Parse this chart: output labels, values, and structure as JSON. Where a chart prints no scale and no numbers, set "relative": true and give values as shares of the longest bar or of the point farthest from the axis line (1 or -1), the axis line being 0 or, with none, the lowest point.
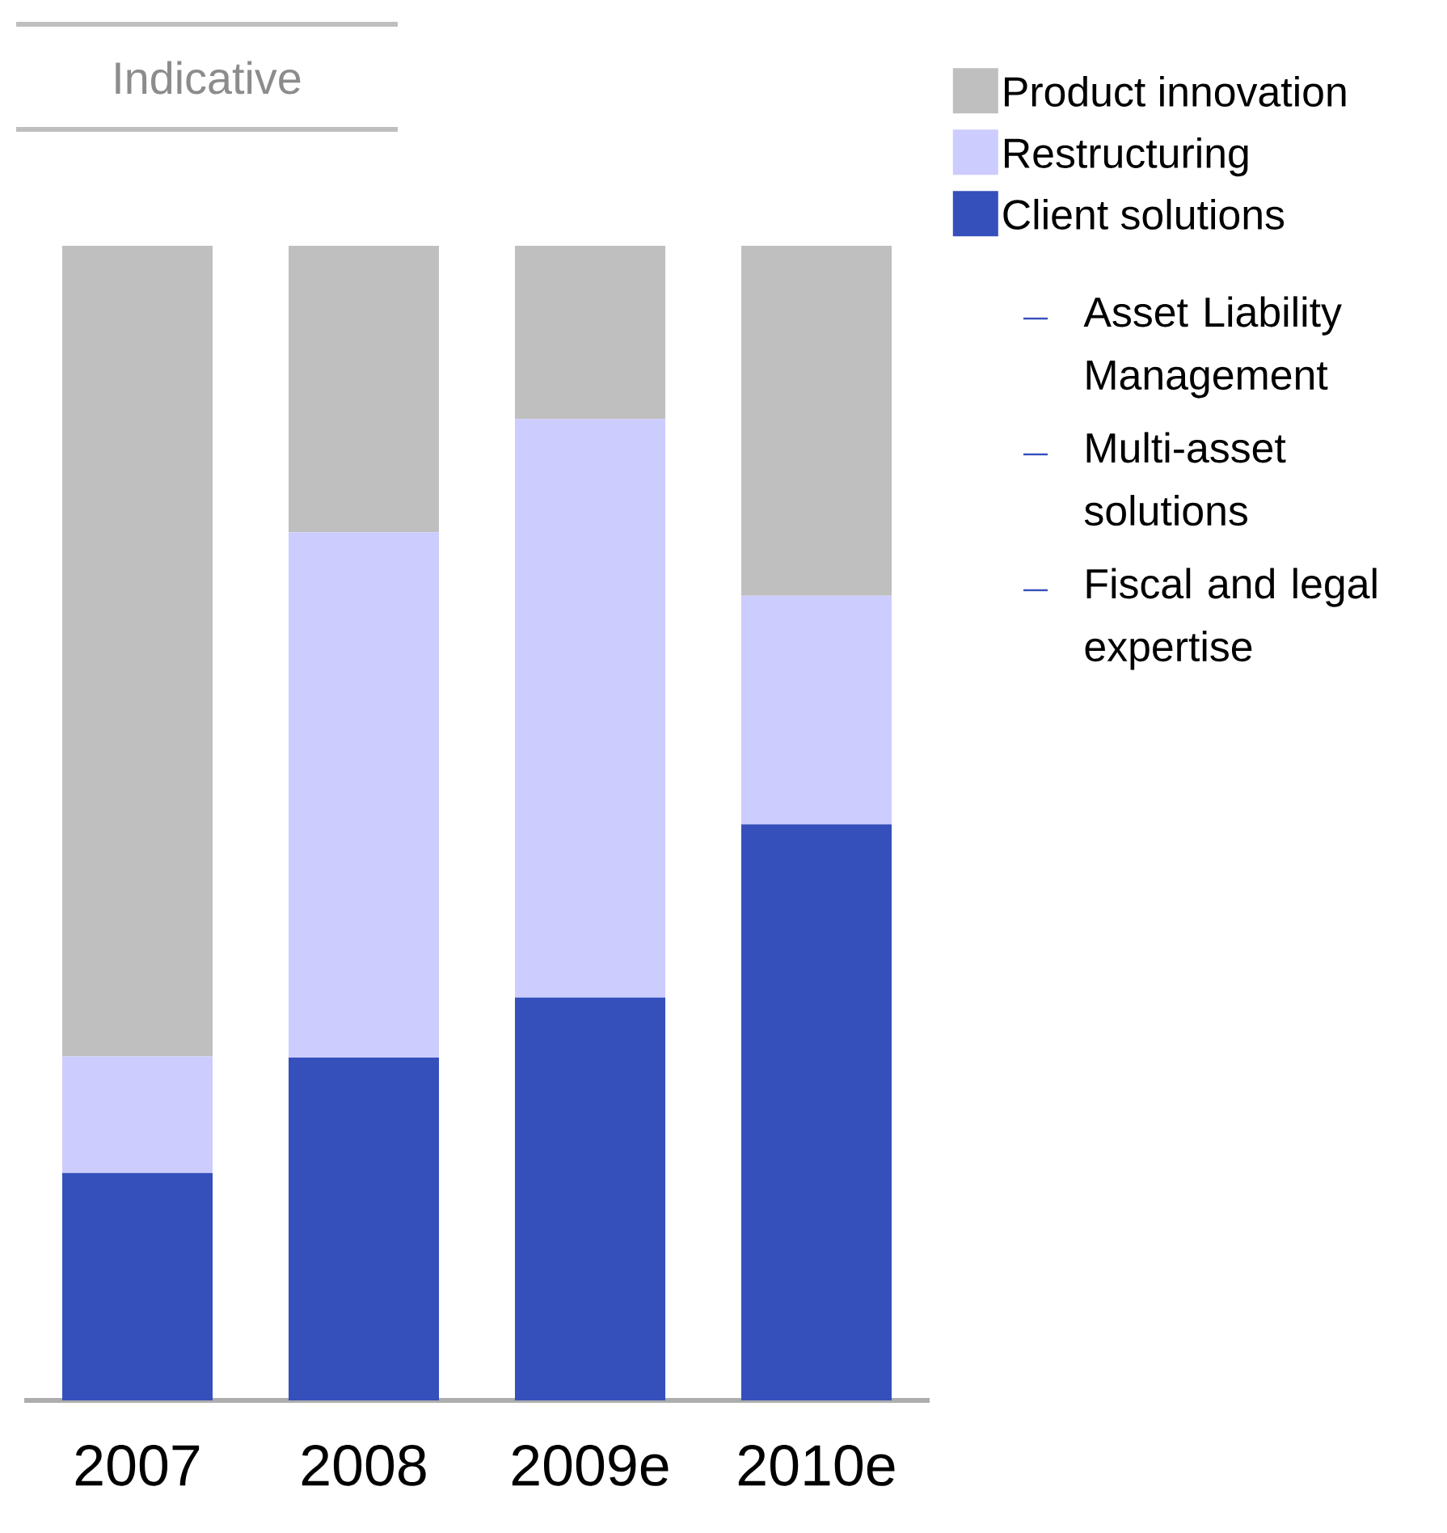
{
  "chart_data": {
    "type": "bar",
    "stacked": true,
    "relative": true,
    "legend": "top right",
    "categories": [
      "2007",
      "2008",
      "2009e",
      "2010e"
    ],
    "series": [
      {
        "name": "Client solutions",
        "color": "#354fbb",
        "values": [
          0.197,
          0.297,
          0.349,
          0.499
        ]
      },
      {
        "name": "Restructuring",
        "color": "#ccccff",
        "values": [
          0.101,
          0.455,
          0.501,
          0.198
        ]
      },
      {
        "name": "Product innovation",
        "color": "#bfbfbf",
        "values": [
          0.702,
          0.248,
          0.15,
          0.303
        ]
      }
    ],
    "annotations": [
      "Indicative",
      "Asset Liability Management",
      "Multi-asset solutions",
      "Fiscal and legal expertise"
    ]
  }
}
